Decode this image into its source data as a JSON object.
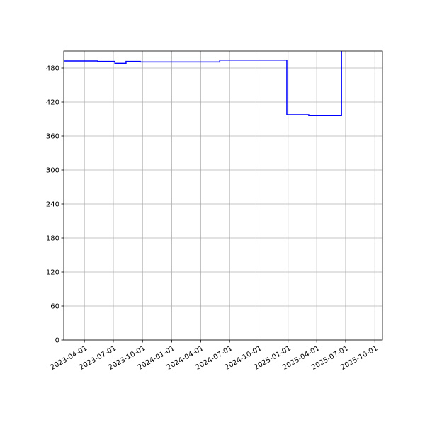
{
  "chart_data": {
    "type": "line",
    "style": "step-post",
    "title": "",
    "xlabel": "",
    "ylabel": "",
    "xlim": [
      "2023-01-26",
      "2025-10-25"
    ],
    "ylim": [
      0,
      510
    ],
    "grid": true,
    "line_color": "#0000ff",
    "x_ticks": [
      "2023-04-01",
      "2023-07-01",
      "2023-10-01",
      "2024-01-01",
      "2024-04-01",
      "2024-07-01",
      "2024-10-01",
      "2025-01-01",
      "2025-04-01",
      "2025-07-01",
      "2025-10-01"
    ],
    "y_ticks": [
      0,
      60,
      120,
      180,
      240,
      300,
      360,
      420,
      480
    ],
    "series": [
      {
        "x": [
          "2023-01-26",
          "2023-05-13",
          "2023-07-06",
          "2023-08-10",
          "2023-09-24",
          "2024-05-31",
          "2024-12-28",
          "2025-03-07",
          "2025-06-18"
        ],
        "y": [
          492.5,
          491.7,
          488.3,
          491.7,
          490.8,
          494,
          397.5,
          396,
          530
        ]
      }
    ]
  }
}
